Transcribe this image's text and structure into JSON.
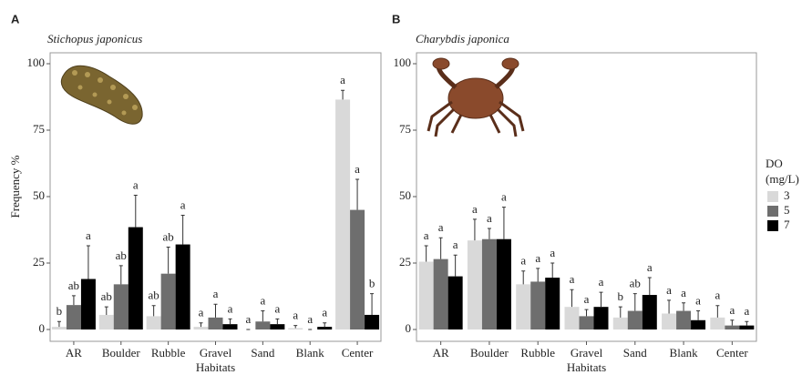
{
  "chart_data": [
    {
      "type": "bar",
      "panel": "A",
      "title": "Stichopus japonicus",
      "ylabel": "Frequency %",
      "xlabel": "Habitats",
      "categories": [
        "AR",
        "Boulder",
        "Rubble",
        "Gravel",
        "Sand",
        "Blank",
        "Center"
      ],
      "series": [
        {
          "color": "#d9d9d9",
          "values": [
            1,
            5.5,
            5,
            1,
            0,
            0.5,
            86.5
          ],
          "errors": [
            2,
            3,
            4,
            1.5,
            0,
            1,
            3.5
          ],
          "letters": [
            "b",
            "ab",
            "ab",
            "a",
            "a",
            "a",
            "a"
          ]
        },
        {
          "color": "#6e6e6e",
          "values": [
            9.2,
            17,
            21,
            4.5,
            3,
            0,
            45
          ],
          "errors": [
            3.5,
            7,
            10,
            5,
            4,
            0,
            11.5
          ],
          "letters": [
            "ab",
            "ab",
            "ab",
            "a",
            "a",
            "a",
            "a"
          ]
        },
        {
          "color": "#000000",
          "values": [
            19,
            38.5,
            32,
            2,
            2,
            1,
            5.5
          ],
          "errors": [
            12.5,
            12,
            11,
            2,
            2,
            1.5,
            8
          ],
          "letters": [
            "a",
            "a",
            "a",
            "a",
            "a",
            "a",
            "b"
          ]
        }
      ],
      "ylim": [
        0,
        100
      ],
      "yticks": [
        0,
        25,
        50,
        75,
        100
      ],
      "grid": false,
      "legend": false
    },
    {
      "type": "bar",
      "panel": "B",
      "title": "Charybdis japonica",
      "xlabel": "Habitats",
      "categories": [
        "AR",
        "Boulder",
        "Rubble",
        "Gravel",
        "Sand",
        "Blank",
        "Center"
      ],
      "series": [
        {
          "name": "3",
          "color": "#d9d9d9",
          "values": [
            25.5,
            33.5,
            17,
            8.5,
            4.5,
            6,
            4.5
          ],
          "errors": [
            6,
            8,
            5,
            6.5,
            4,
            5,
            4.5
          ],
          "letters": [
            "a",
            "a",
            "a",
            "a",
            "b",
            "a",
            "a"
          ]
        },
        {
          "name": "5",
          "color": "#6e6e6e",
          "values": [
            26.5,
            34,
            18,
            5,
            7,
            7,
            1.5
          ],
          "errors": [
            8,
            4,
            5,
            2.5,
            6.5,
            3,
            2
          ],
          "letters": [
            "a",
            "a",
            "a",
            "a",
            "ab",
            "a",
            "a"
          ]
        },
        {
          "name": "7",
          "color": "#000000",
          "values": [
            20,
            34,
            19.5,
            8.5,
            13,
            3.5,
            1.5
          ],
          "errors": [
            8,
            12,
            5.5,
            5.5,
            6.5,
            3.5,
            1.5
          ],
          "letters": [
            "a",
            "a",
            "a",
            "a",
            "a",
            "a",
            "a"
          ]
        }
      ],
      "ylim": [
        0,
        100
      ],
      "yticks": [
        0,
        25,
        50,
        75,
        100
      ],
      "grid": false,
      "legend": true,
      "legend_title_lines": [
        "DO",
        "(mg/L)"
      ]
    }
  ]
}
